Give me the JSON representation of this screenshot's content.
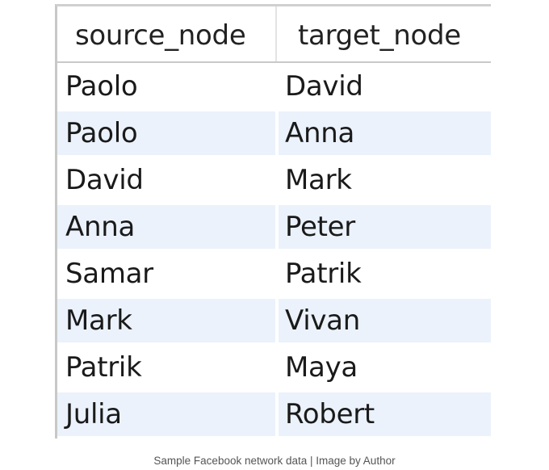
{
  "table": {
    "columns": [
      {
        "key": "source_node",
        "label": "source_node"
      },
      {
        "key": "target_node",
        "label": "target_node"
      }
    ],
    "rows": [
      {
        "source_node": "Paolo",
        "target_node": "David"
      },
      {
        "source_node": "Paolo",
        "target_node": "Anna"
      },
      {
        "source_node": "David",
        "target_node": "Mark"
      },
      {
        "source_node": "Anna",
        "target_node": "Peter"
      },
      {
        "source_node": "Samar",
        "target_node": "Patrik"
      },
      {
        "source_node": "Mark",
        "target_node": "Vivan"
      },
      {
        "source_node": "Patrik",
        "target_node": "Maya"
      },
      {
        "source_node": "Julia",
        "target_node": "Robert"
      }
    ]
  },
  "caption": "Sample Facebook network data | Image by Author",
  "colors": {
    "alt_row_background": "#ebf2fb",
    "header_border": "#c9c9c9",
    "text": "#1a1a1a"
  }
}
